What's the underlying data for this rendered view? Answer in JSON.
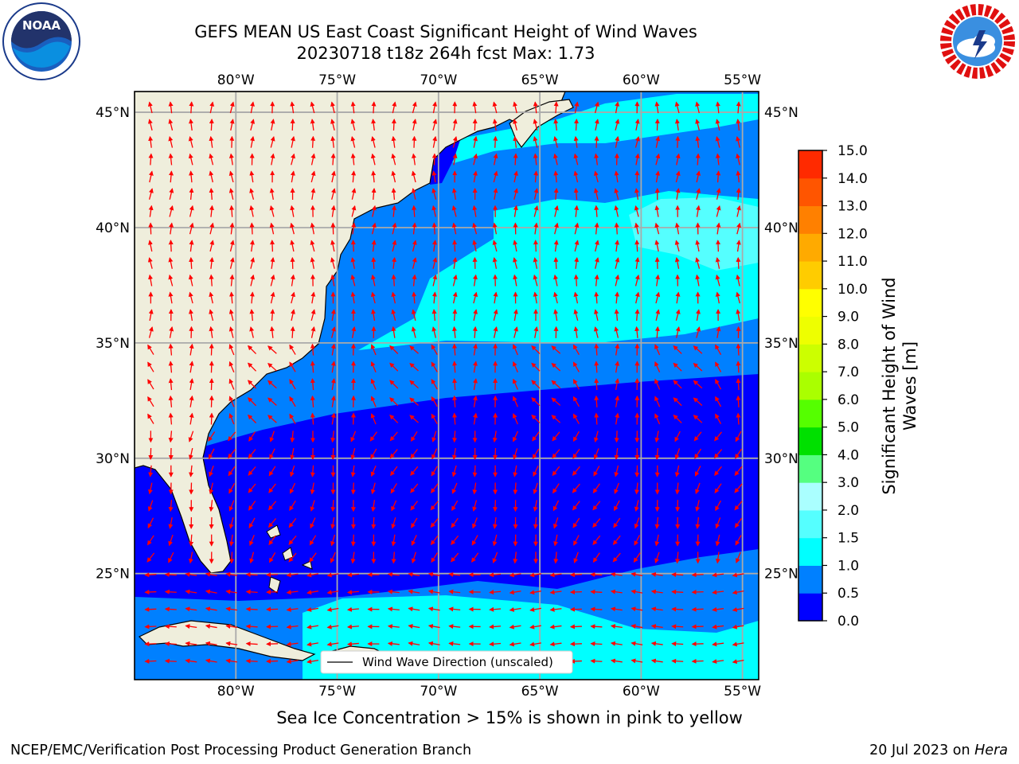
{
  "title": {
    "line1": "GEFS MEAN US East Coast Significant Height of Wind Waves",
    "line2": "20230718 t18z 264h fcst    Max: 1.73"
  },
  "map": {
    "lon_range": [
      -85,
      -54.2
    ],
    "lat_range": [
      20.4,
      45.9
    ],
    "lon_ticks": [
      -80,
      -75,
      -70,
      -65,
      -60,
      -55
    ],
    "lon_tick_labels": [
      "80°W",
      "75°W",
      "70°W",
      "65°W",
      "60°W",
      "55°W"
    ],
    "lat_ticks": [
      25,
      30,
      35,
      40,
      45
    ],
    "lat_tick_labels": [
      "25°N",
      "30°N",
      "35°N",
      "40°N",
      "45°N"
    ],
    "grid": true,
    "legend": {
      "label": "Wind Wave Direction (unscaled)",
      "placement": "bottom-center"
    },
    "colors": {
      "land": "#efeedc",
      "gridline": "#aaaaaa",
      "arrow": "#ff0000"
    }
  },
  "colorbar": {
    "label_line1": "Significant Height of Wind",
    "label_line2": "Waves [m]",
    "levels": [
      0.0,
      0.5,
      1.0,
      1.5,
      2.0,
      3.0,
      4.0,
      5.0,
      6.0,
      7.0,
      8.0,
      9.0,
      10.0,
      11.0,
      12.0,
      13.0,
      14.0,
      15.0
    ],
    "tick_labels": [
      "0.0",
      "0.5",
      "1.0",
      "1.5",
      "2.0",
      "3.0",
      "4.0",
      "5.0",
      "6.0",
      "7.0",
      "8.0",
      "9.0",
      "10.0",
      "11.0",
      "12.0",
      "13.0",
      "14.0",
      "15.0"
    ],
    "colors": [
      "#0000ff",
      "#0080ff",
      "#00ffff",
      "#55ffff",
      "#aaffff",
      "#55ff80",
      "#00e000",
      "#55ff00",
      "#aaff00",
      "#ccff00",
      "#eeff00",
      "#ffff00",
      "#ffcc00",
      "#ffaa00",
      "#ff8000",
      "#ff5500",
      "#ff2a00"
    ]
  },
  "ice_note": "Sea Ice Concentration > 15% is shown in pink to yellow",
  "footer": {
    "left": "NCEP/EMC/Verification Post Processing Product Generation Branch",
    "right_prefix": "20 Jul 2023 on",
    "right_machine": "Hera"
  },
  "logos": {
    "left": "noaa-logo",
    "left_text": "NOAA",
    "right": "nws-logo"
  }
}
